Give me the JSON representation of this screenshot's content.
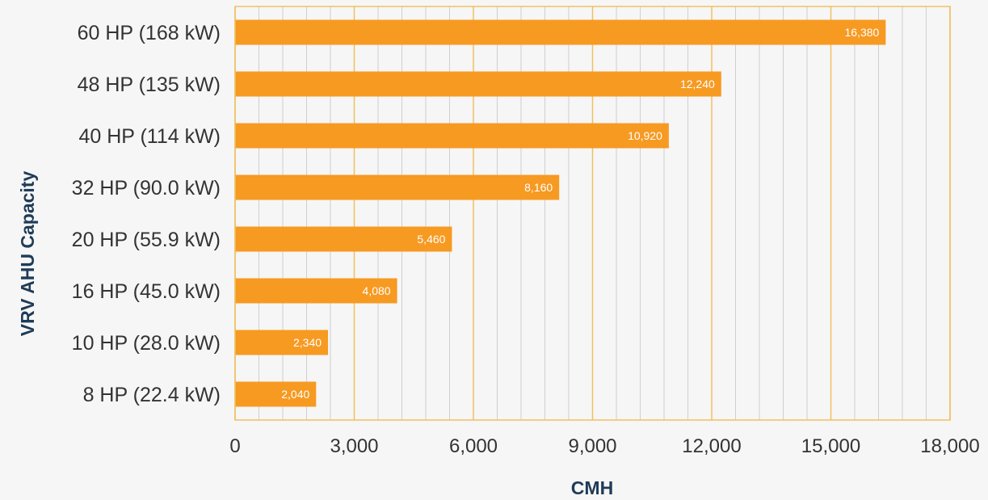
{
  "chart_data": {
    "type": "bar",
    "orientation": "horizontal",
    "categories": [
      "60 HP (168 kW)",
      "48 HP (135 kW)",
      "40 HP (114 kW)",
      "32 HP (90.0 kW)",
      "20 HP (55.9 kW)",
      "16 HP (45.0 kW)",
      "10 HP (28.0 kW)",
      "8 HP (22.4 kW)"
    ],
    "values": [
      16380,
      12240,
      10920,
      8160,
      5460,
      4080,
      2340,
      2040
    ],
    "data_labels": [
      "16,380",
      "12,240",
      "10,920",
      "8,160",
      "5,460",
      "4,080",
      "2,340",
      "2,040"
    ],
    "xlabel": "CMH",
    "ylabel": "VRV AHU Capacity",
    "xlim": [
      0,
      18000
    ],
    "x_ticks": [
      0,
      3000,
      6000,
      9000,
      12000,
      15000,
      18000
    ],
    "x_tick_labels": [
      "0",
      "3,000",
      "6,000",
      "9,000",
      "12,000",
      "15,000",
      "18,000"
    ],
    "minor_grid_step": 600,
    "grid": true,
    "legend": "none",
    "colors": {
      "bar": "#f79a22",
      "major_grid": "#f0c060",
      "minor_grid": "#cfcfcf",
      "frame": "#f0c060",
      "background": "#f6f6f6",
      "axis_title": "#1f3b57",
      "text": "#333333"
    }
  }
}
